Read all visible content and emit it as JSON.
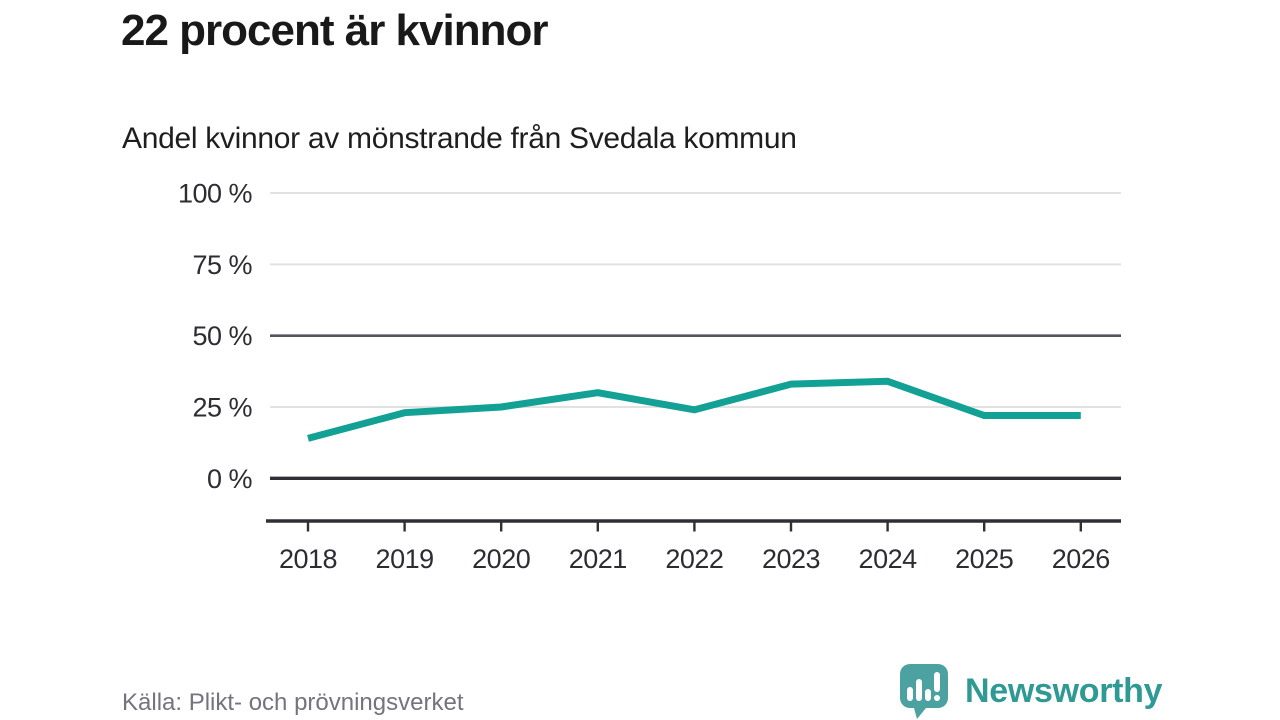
{
  "header": {
    "title": "22 procent är kvinnor",
    "subtitle": "Andel kvinnor av mönstrande från Svedala kommun"
  },
  "chart_data": {
    "type": "line",
    "title": "22 procent är kvinnor",
    "subtitle": "Andel kvinnor av mönstrande från Svedala kommun",
    "x": [
      2018,
      2019,
      2020,
      2021,
      2022,
      2023,
      2024,
      2025,
      2026
    ],
    "series": [
      {
        "name": "Andel kvinnor av mönstrande",
        "values": [
          14,
          23,
          25,
          30,
          24,
          33,
          34,
          22,
          22
        ]
      }
    ],
    "unit": "%",
    "ylim": [
      0,
      100
    ],
    "yticks": [
      0,
      25,
      50,
      75,
      100
    ],
    "ytick_labels": [
      "0 %",
      "25 %",
      "50 %",
      "75 %",
      "100 %"
    ],
    "xtick_labels": [
      "2018",
      "2019",
      "2020",
      "2021",
      "2022",
      "2023",
      "2024",
      "2025",
      "2026"
    ],
    "grid": true,
    "legend": "none"
  },
  "footer": {
    "source": "Källa: Plikt- och prövningsverket",
    "brand": "Newsworthy"
  },
  "colors": {
    "accent_line": "#14a195",
    "gridline_light": "#e2e2e2",
    "gridline_mid": "#56535f",
    "axis_dark": "#2f2f37",
    "logo_bubble": "#4ca2a1",
    "logo_text": "#2f9a94"
  }
}
